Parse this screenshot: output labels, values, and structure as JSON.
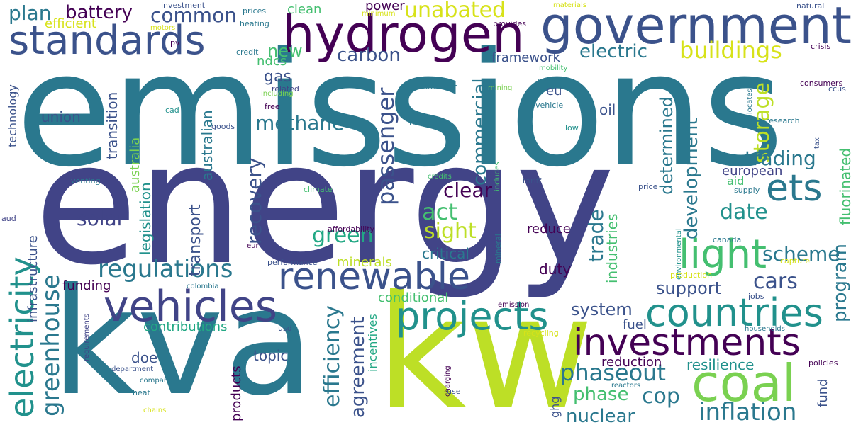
{
  "palette": [
    "#440154",
    "#414487",
    "#3b528b",
    "#2a788e",
    "#21918c",
    "#22a884",
    "#44bf70",
    "#7ad151",
    "#bddf26",
    "#d7e219"
  ],
  "words": {
    "emissions": "emissions",
    "energy": "energy",
    "kva": "kva",
    "kw": "kw",
    "government": "government",
    "hydrogen": "hydrogen",
    "standards": "standards",
    "coal": "coal",
    "countries": "countries",
    "investments": "investments",
    "projects": "projects",
    "renewable": "renewable",
    "vehicles": "vehicles",
    "electricity": "electricity",
    "light": "light",
    "ets": "ets",
    "regulations": "regulations",
    "greenhouse": "greenhouse",
    "phaseout": "phaseout",
    "buildings": "buildings",
    "unabated": "unabated",
    "inflation": "inflation",
    "battery": "battery",
    "plan": "plan",
    "common": "common",
    "electric": "electric",
    "passenger": "passenger",
    "commercial": "commercial",
    "storage": "storage",
    "methane": "methane",
    "carbon": "carbon",
    "recovery": "recovery",
    "green": "green",
    "solar": "solar",
    "clear": "clear",
    "act": "act",
    "sight": "sight",
    "trading": "trading",
    "date": "date",
    "scheme": "scheme",
    "development": "development",
    "determined": "determined",
    "cars": "cars",
    "support": "support",
    "system": "system",
    "cop": "cop",
    "phase": "phase",
    "nuclear": "nuclear",
    "resilience": "resilience",
    "program": "program",
    "fluorinated": "fluorinated",
    "efficiency": "efficiency",
    "agreement": "agreement",
    "trade": "trade",
    "industries": "industries",
    "infrastructure": "infrastructure",
    "transport": "transport",
    "legislation": "legislation",
    "australia": "australia",
    "australian": "australian",
    "transition": "transition",
    "technology": "technology",
    "contributions": "contributions",
    "funding": "funding",
    "minerals": "minerals",
    "conditional": "conditional",
    "critical": "critical",
    "duty": "duty",
    "reduce": "reduce",
    "topic": "topic",
    "doe": "doe",
    "products": "products",
    "incentives": "incentives",
    "european": "european",
    "oil": "oil",
    "framework": "framework",
    "new": "new",
    "gas": "gas",
    "ndcs": "ndcs",
    "union": "union",
    "efficient": "efficient",
    "clean": "clean",
    "power": "power",
    "eu": "eu",
    "aid": "aid",
    "fuel": "fuel",
    "reduction": "reduction",
    "fund": "fund",
    "ghg": "ghg",
    "investment": "investment",
    "prices": "prices",
    "minimum": "minimum",
    "materials": "materials",
    "natural": "natural",
    "heating": "heating",
    "motors": "motors",
    "provides": "provides",
    "pv": "pv",
    "credit": "credit",
    "crisis": "crisis",
    "mobility": "mobility",
    "flaring": "flaring",
    "related": "related",
    "including": "including",
    "strategy": "strategy",
    "strategic": "strategic",
    "mining": "mining",
    "allocates": "allocates",
    "consumers": "consumers",
    "ccus": "ccus",
    "cad": "cad",
    "free": "free",
    "vehicle": "vehicle",
    "goods": "goods",
    "tariffs": "tariffs",
    "low": "low",
    "research": "research",
    "tax": "tax",
    "venting": "venting",
    "credits": "credits",
    "includes": "includes",
    "tariff": "tariff",
    "climate": "climate",
    "price": "price",
    "supply": "supply",
    "aud": "aud",
    "affordability": "affordability",
    "eur": "eur",
    "mineral": "mineral",
    "environmental": "environmental",
    "canada": "canada",
    "performance": "performance",
    "production": "production",
    "capture": "capture",
    "colombia": "colombia",
    "jobs": "jobs",
    "emission": "emission",
    "usd": "usd",
    "households": "households",
    "requirements": "requirements",
    "recycling": "recycling",
    "department": "department",
    "companies": "companies",
    "charging": "charging",
    "policies": "policies",
    "reactors": "reactors",
    "heat": "heat",
    "use": "use",
    "chains": "chains"
  }
}
